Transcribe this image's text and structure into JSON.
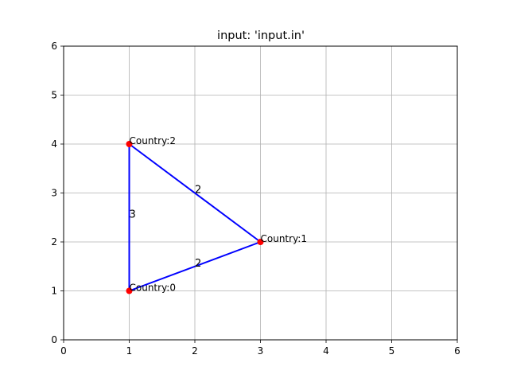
{
  "chart_data": {
    "type": "scatter",
    "title": "input: 'input.in'",
    "xlabel": "",
    "ylabel": "",
    "xlim": [
      0,
      6
    ],
    "ylim": [
      0,
      6
    ],
    "xticks": [
      0,
      1,
      2,
      3,
      4,
      5,
      6
    ],
    "yticks": [
      0,
      1,
      2,
      3,
      4,
      5,
      6
    ],
    "grid": true,
    "nodes": [
      {
        "label": "Country:0",
        "x": 1,
        "y": 1
      },
      {
        "label": "Country:1",
        "x": 3,
        "y": 2
      },
      {
        "label": "Country:2",
        "x": 1,
        "y": 4
      }
    ],
    "edges": [
      {
        "from": 0,
        "to": 1,
        "weight": "2"
      },
      {
        "from": 1,
        "to": 2,
        "weight": "2"
      },
      {
        "from": 2,
        "to": 0,
        "weight": "3"
      }
    ],
    "colors": {
      "edge": "#0000ff",
      "node": "#ff0000",
      "grid": "#b0b0b0",
      "axes": "#000000"
    }
  }
}
